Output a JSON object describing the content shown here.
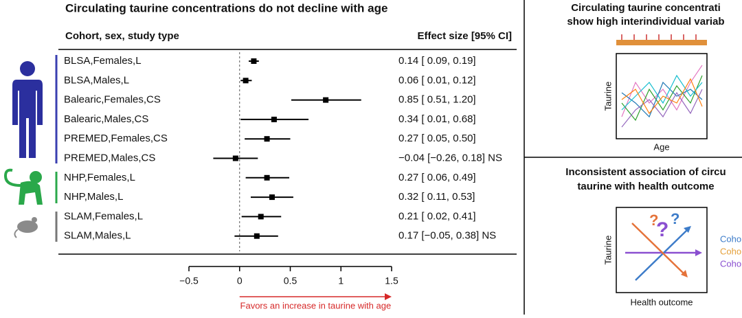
{
  "chart_data": {
    "type": "forest",
    "title": "Circulating taurine concentrations do not decline with age",
    "label_header": "Cohort, sex, study type",
    "value_header": "Effect size [95% CI]",
    "categories": [
      "BLSA,Females,L",
      "BLSA,Males,L",
      "Balearic,Females,CS",
      "Balearic,Males,CS",
      "PREMED,Females,CS",
      "PREMED,Males,CS",
      "NHP,Females,L",
      "NHP,Males,L",
      "SLAM,Females,L",
      "SLAM,Males,L"
    ],
    "values": [
      0.14,
      0.06,
      0.85,
      0.34,
      0.27,
      -0.04,
      0.27,
      0.32,
      0.21,
      0.17
    ],
    "lower": [
      0.09,
      0.01,
      0.51,
      0.01,
      0.05,
      -0.26,
      0.06,
      0.11,
      0.02,
      -0.05
    ],
    "upper": [
      0.19,
      0.12,
      1.2,
      0.68,
      0.5,
      0.18,
      0.49,
      0.53,
      0.41,
      0.38
    ],
    "value_labels": [
      "0.14 [ 0.09, 0.19]",
      "0.06 [ 0.01, 0.12]",
      "0.85 [ 0.51, 1.20]",
      "0.34 [ 0.01, 0.68]",
      "0.27 [ 0.05, 0.50]",
      "−0.04 [−0.26, 0.18] NS",
      "0.27 [ 0.06, 0.49]",
      "0.32 [ 0.11, 0.53]",
      "0.21 [ 0.02, 0.41]",
      "0.17 [−0.05, 0.38] NS"
    ],
    "color": "#000000",
    "xlim": [
      -0.5,
      1.5
    ],
    "xticks": [
      {
        "value": -0.5,
        "label": "−0.5"
      },
      0,
      0.5,
      1,
      1.5
    ],
    "annotation": "Favors an increase in taurine with age"
  },
  "side_panels": {
    "top": {
      "title_lines": [
        "Circulating taurine concentrati",
        "show high interindividual variab"
      ],
      "y_label": "Taurine",
      "x_label": "Age"
    },
    "bottom": {
      "title_lines": [
        "Inconsistent association of circu",
        "taurine with health outcome"
      ],
      "y_label": "Taurine",
      "x_label": "Health outcome",
      "legend": [
        "Coho",
        "Coho",
        "Coho"
      ]
    }
  }
}
